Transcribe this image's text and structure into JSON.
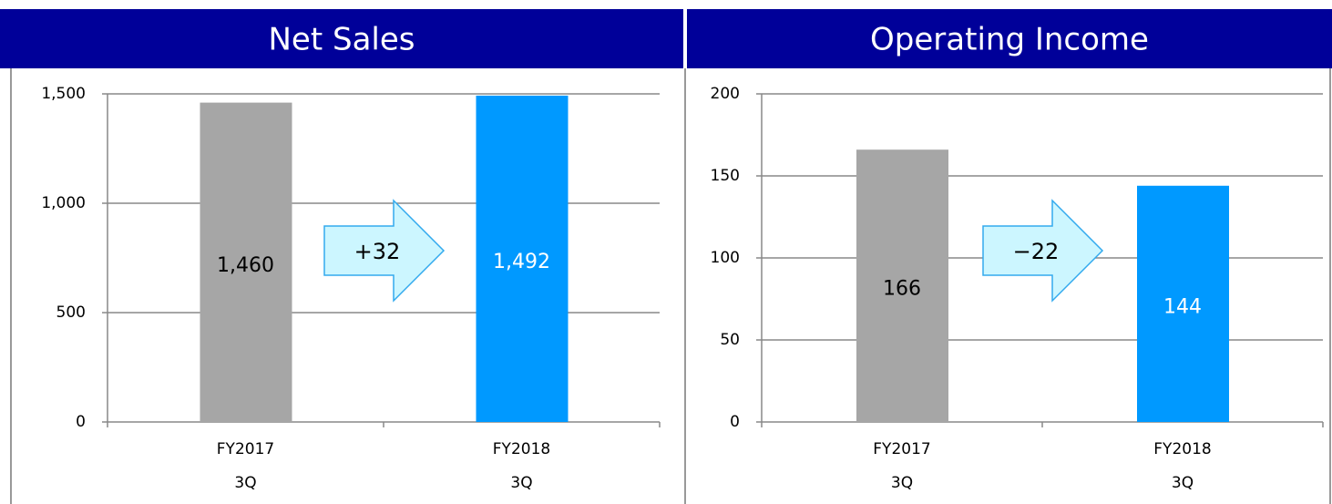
{
  "chart_data": [
    {
      "type": "bar",
      "title": "Net Sales",
      "categories": [
        "FY2017\n3Q",
        "FY2018\n3Q"
      ],
      "values": [
        1460,
        1492
      ],
      "value_labels": [
        "1,460",
        "1,492"
      ],
      "colors": [
        "#a6a6a6",
        "#0099ff"
      ],
      "value_label_colors": [
        "#000000",
        "#ffffff"
      ],
      "ylim": [
        0,
        1500
      ],
      "yticks": [
        0,
        500,
        {
          "value": 1000,
          "label": "1,000"
        },
        {
          "value": 1500,
          "label": "1,500"
        }
      ],
      "grid": true,
      "annotation": "+32"
    },
    {
      "type": "bar",
      "title": "Operating Income",
      "categories": [
        "FY2017\n3Q",
        "FY2018\n3Q"
      ],
      "values": [
        166,
        144
      ],
      "colors": [
        "#a6a6a6",
        "#0099ff"
      ],
      "value_label_colors": [
        "#000000",
        "#ffffff"
      ],
      "ylim": [
        0,
        200
      ],
      "yticks": [
        0,
        50,
        100,
        150,
        200
      ],
      "grid": true,
      "annotation": "−22"
    }
  ]
}
